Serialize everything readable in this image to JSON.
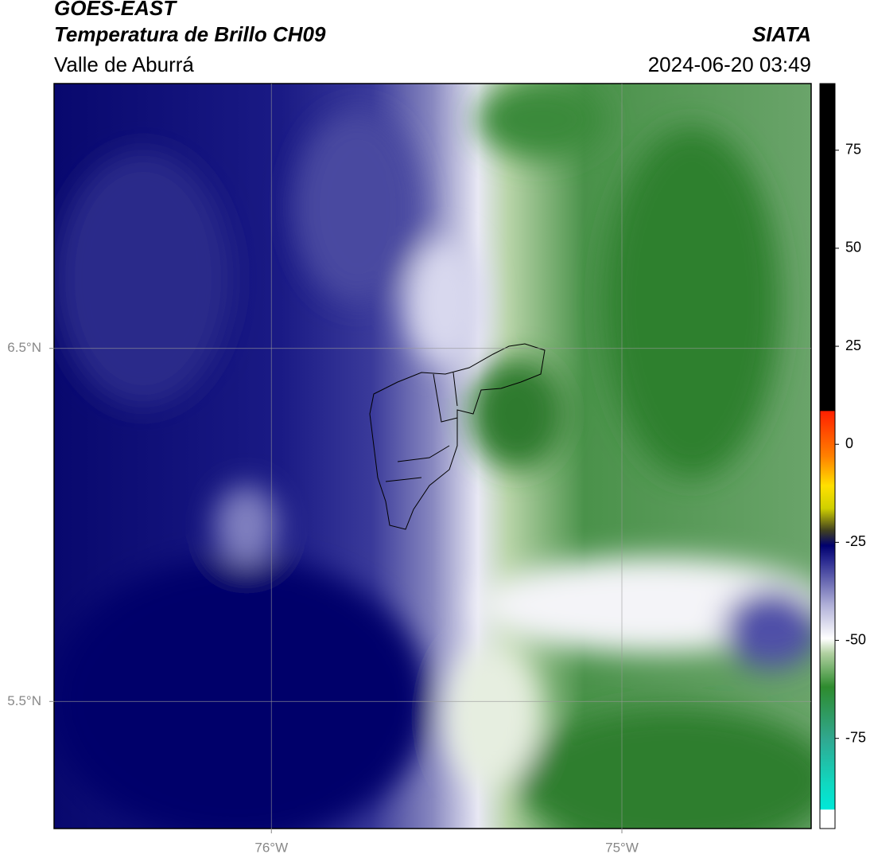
{
  "chart_data": {
    "type": "map",
    "title": "GOES-EAST",
    "subtitle": "Temperatura de Brillo CH09",
    "region": "Valle de Aburrá",
    "source": "SIATA",
    "datetime": "2024-06-20 03:49",
    "xlim": [
      -76.62,
      -74.46
    ],
    "ylim": [
      5.14,
      7.25
    ],
    "xticks": [
      {
        "value": -76,
        "label": "76°W"
      },
      {
        "value": -75,
        "label": "75°W"
      }
    ],
    "yticks": [
      {
        "value": 5.5,
        "label": "5.5°N"
      },
      {
        "value": 6.5,
        "label": "6.5°N"
      }
    ],
    "grid": true,
    "clim": [
      -98,
      92
    ],
    "cticks": [
      -75,
      -50,
      -25,
      0,
      25,
      50,
      75
    ]
  }
}
